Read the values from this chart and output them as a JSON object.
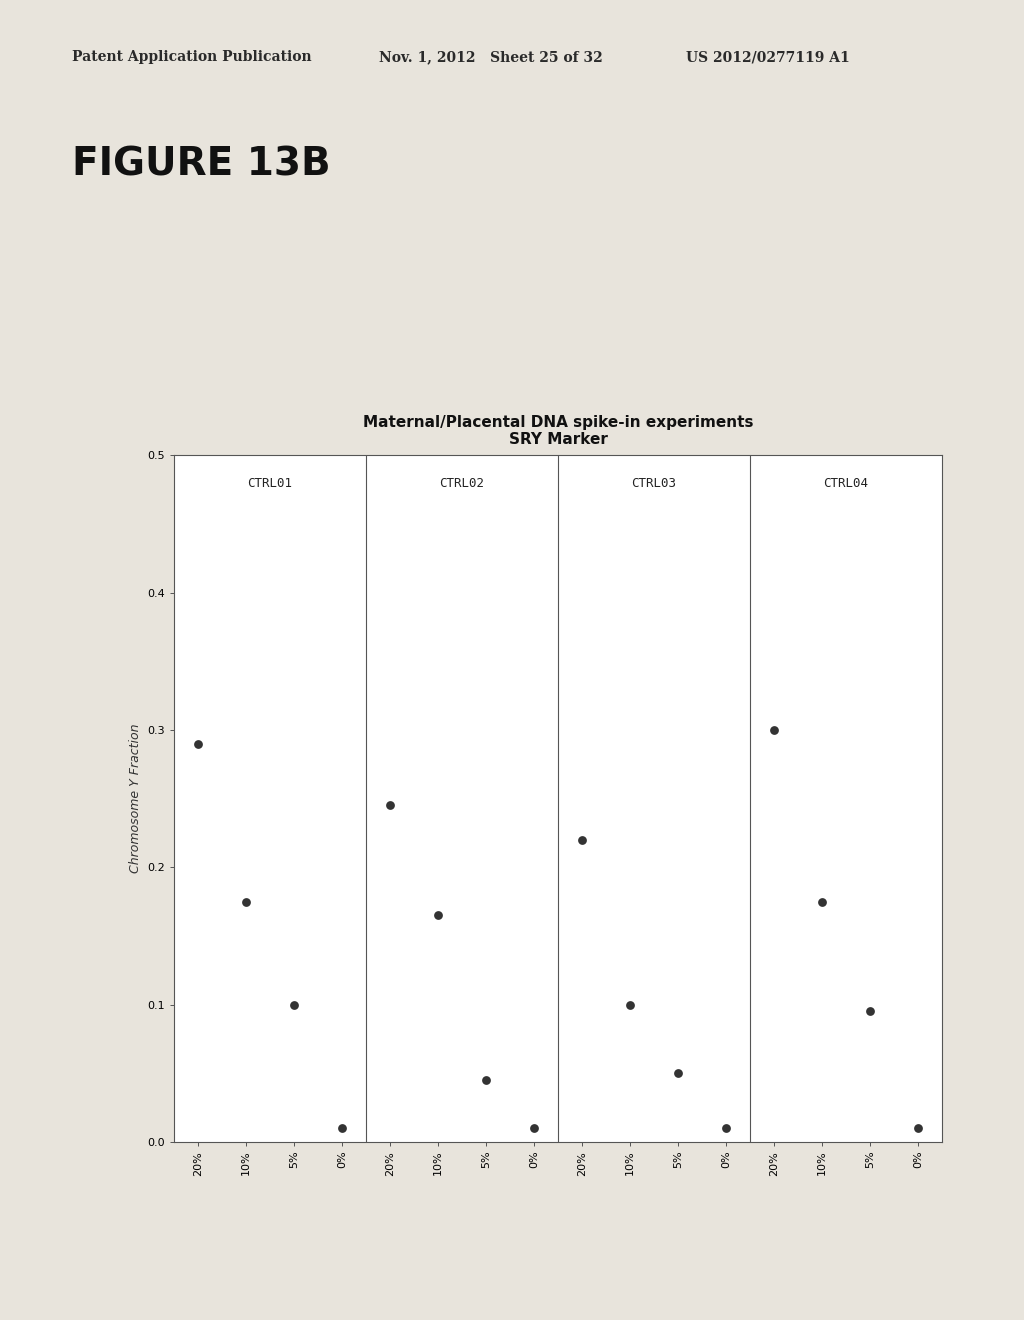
{
  "title_line1": "Maternal/Placental DNA spike-in experiments",
  "title_line2": "SRY Marker",
  "ylabel": "Chromosome Y Fraction",
  "x_labels": [
    "20%",
    "10%",
    "5%",
    "0%"
  ],
  "panels": [
    "CTRL01",
    "CTRL02",
    "CTRL03",
    "CTRL04"
  ],
  "data": {
    "CTRL01": [
      0.29,
      0.175,
      0.1,
      0.01
    ],
    "CTRL02": [
      0.245,
      0.165,
      0.045,
      0.01
    ],
    "CTRL03": [
      0.22,
      0.1,
      0.05,
      0.01
    ],
    "CTRL04": [
      0.3,
      0.175,
      0.095,
      0.01
    ]
  },
  "ylim": [
    0.0,
    0.5
  ],
  "yticks": [
    0.0,
    0.1,
    0.2,
    0.3,
    0.4,
    0.5
  ],
  "dot_color": "#333333",
  "dot_size": 40,
  "panel_bg_color": "#ffffff",
  "page_bg_color": "#e8e4dc",
  "figure_title": "FIGURE 13B",
  "header_left": "Patent Application Publication",
  "header_center": "Nov. 1, 2012   Sheet 25 of 32",
  "header_right": "US 2012/0277119 A1",
  "header_fontsize": 10,
  "figure_title_fontsize": 28,
  "title_fontsize": 11,
  "ylabel_fontsize": 9,
  "tick_fontsize": 8,
  "panel_label_fontsize": 9
}
